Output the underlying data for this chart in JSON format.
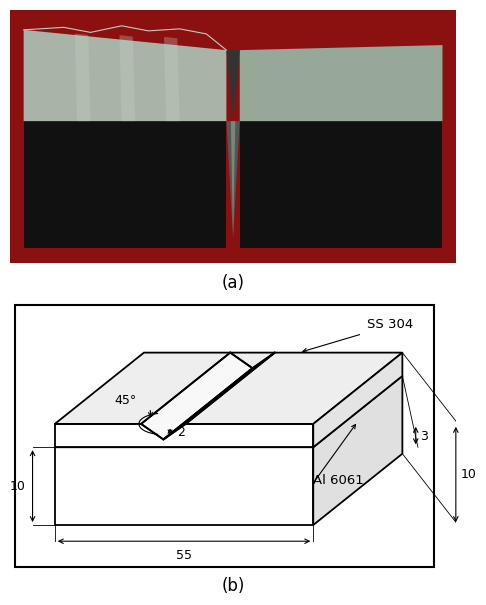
{
  "label_a": "(a)",
  "label_b": "(b)",
  "ss304_label": "SS 304",
  "al6061_label": "Al 6061",
  "dim_55": "55",
  "dim_10_bottom": "10",
  "dim_10_right": "10",
  "dim_3": "3",
  "dim_2": "2",
  "dim_45": "45°",
  "bg_color": "#ffffff",
  "photo_bg": "#8b0000",
  "lw": 1.3
}
